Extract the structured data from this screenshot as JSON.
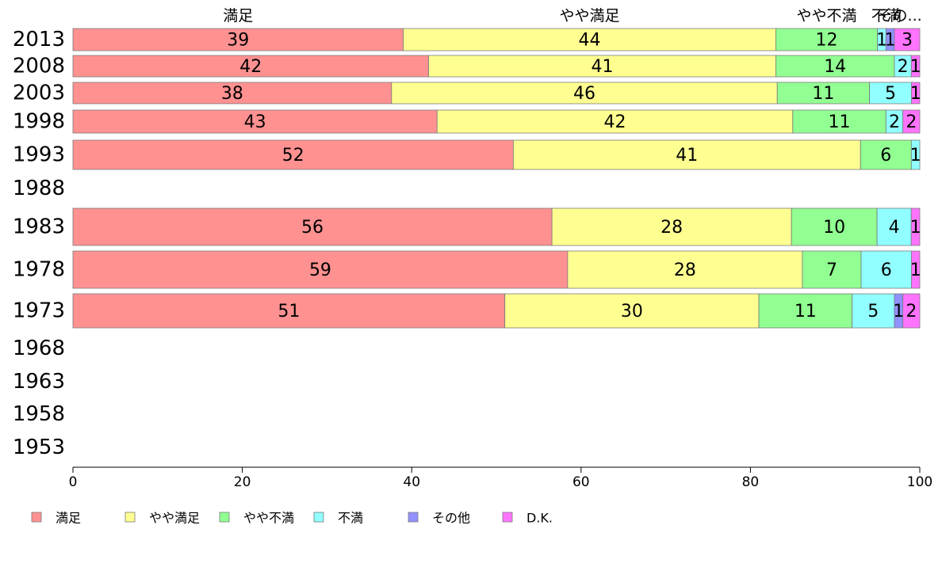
{
  "chart_data": {
    "type": "bar",
    "orientation": "horizontal",
    "stacked": true,
    "xlim": [
      0,
      100
    ],
    "x_ticks": [
      0,
      20,
      40,
      60,
      80,
      100
    ],
    "categories": [
      "2013",
      "2008",
      "2003",
      "1998",
      "1993",
      "1988",
      "1983",
      "1978",
      "1973",
      "1968",
      "1963",
      "1958",
      "1953"
    ],
    "series": [
      {
        "name": "満足",
        "color": "#ff9191",
        "values": [
          39,
          42,
          38,
          43,
          52,
          null,
          56,
          59,
          51,
          null,
          null,
          null,
          null
        ]
      },
      {
        "name": "やや満足",
        "color": "#ffff91",
        "values": [
          44,
          41,
          46,
          42,
          41,
          null,
          28,
          28,
          30,
          null,
          null,
          null,
          null
        ]
      },
      {
        "name": "やや不満",
        "color": "#91ff91",
        "values": [
          12,
          14,
          11,
          11,
          6,
          null,
          10,
          7,
          11,
          null,
          null,
          null,
          null
        ]
      },
      {
        "name": "不満",
        "color": "#91ffff",
        "values": [
          1,
          2,
          5,
          2,
          1,
          null,
          4,
          6,
          5,
          null,
          null,
          null,
          null
        ]
      },
      {
        "name": "その他",
        "color": "#9191ff",
        "values": [
          1,
          0,
          0,
          0,
          0,
          null,
          0,
          0,
          1,
          null,
          null,
          null,
          null
        ]
      },
      {
        "name": "D.K.",
        "color": "#ff73ff",
        "values": [
          3,
          1,
          1,
          2,
          0,
          null,
          1,
          1,
          2,
          null,
          null,
          null,
          null
        ]
      }
    ],
    "top_labels": [
      "満足",
      "やや満足",
      "やや不満",
      "不満",
      "その..."
    ],
    "grid": false,
    "legend_position": "bottom"
  }
}
